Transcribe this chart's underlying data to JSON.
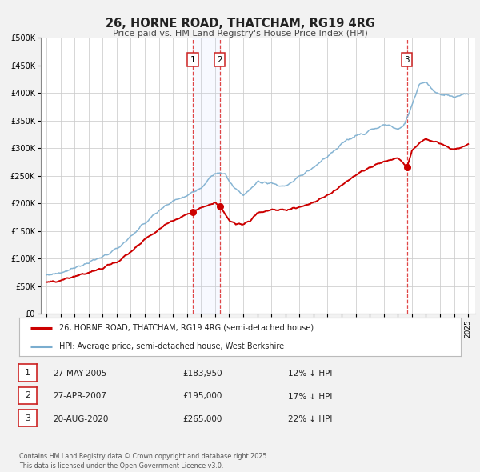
{
  "title": "26, HORNE ROAD, THATCHAM, RG19 4RG",
  "subtitle": "Price paid vs. HM Land Registry's House Price Index (HPI)",
  "background_color": "#f2f2f2",
  "plot_bg_color": "#ffffff",
  "red_label": "26, HORNE ROAD, THATCHAM, RG19 4RG (semi-detached house)",
  "blue_label": "HPI: Average price, semi-detached house, West Berkshire",
  "footer": "Contains HM Land Registry data © Crown copyright and database right 2025.\nThis data is licensed under the Open Government Licence v3.0.",
  "transactions": [
    {
      "num": 1,
      "date": "27-MAY-2005",
      "price": 183950,
      "pct": "12%",
      "year": 2005.41
    },
    {
      "num": 2,
      "date": "27-APR-2007",
      "price": 195000,
      "pct": "17%",
      "year": 2007.32
    },
    {
      "num": 3,
      "date": "20-AUG-2020",
      "price": 265000,
      "pct": "22%",
      "year": 2020.64
    }
  ],
  "red_color": "#cc0000",
  "blue_color": "#7aadcf",
  "vline_color": "#dd3333",
  "ylim": [
    0,
    500000
  ],
  "yticks": [
    0,
    50000,
    100000,
    150000,
    200000,
    250000,
    300000,
    350000,
    400000,
    450000,
    500000
  ],
  "xlim_start": 1994.6,
  "xlim_end": 2025.5,
  "xticks": [
    1995,
    1996,
    1997,
    1998,
    1999,
    2000,
    2001,
    2002,
    2003,
    2004,
    2005,
    2006,
    2007,
    2008,
    2009,
    2010,
    2011,
    2012,
    2013,
    2014,
    2015,
    2016,
    2017,
    2018,
    2019,
    2020,
    2021,
    2022,
    2023,
    2024,
    2025
  ],
  "hpi_anchors_x": [
    1995,
    1996,
    1997,
    1998,
    1999,
    2000,
    2001,
    2002,
    2003,
    2004,
    2005,
    2006,
    2007,
    2007.7,
    2008,
    2009,
    2009.5,
    2010,
    2011,
    2011.5,
    2012,
    2013,
    2014,
    2015,
    2016,
    2017,
    2018,
    2019,
    2019.5,
    2020,
    2020.5,
    2021,
    2021.5,
    2022,
    2022.5,
    2023,
    2024,
    2025
  ],
  "hpi_anchors_y": [
    70000,
    75000,
    84000,
    92000,
    103000,
    118000,
    140000,
    165000,
    185000,
    205000,
    215000,
    228000,
    256000,
    256000,
    238000,
    216000,
    225000,
    238000,
    238000,
    232000,
    232000,
    248000,
    265000,
    285000,
    308000,
    322000,
    332000,
    342000,
    340000,
    332000,
    345000,
    378000,
    415000,
    420000,
    405000,
    398000,
    393000,
    398000
  ],
  "red_anchors_x": [
    1995,
    1996,
    1997,
    1998,
    1999,
    2000,
    2001,
    2002,
    2003,
    2004,
    2005,
    2005.41,
    2006,
    2007,
    2007.32,
    2007.8,
    2008,
    2008.5,
    2009,
    2009.5,
    2010,
    2010.5,
    2011,
    2012,
    2013,
    2014,
    2015,
    2016,
    2017,
    2018,
    2019,
    2020,
    2020.64,
    2021,
    2021.5,
    2022,
    2022.5,
    2023,
    2023.5,
    2024,
    2025
  ],
  "red_anchors_y": [
    57000,
    60000,
    68000,
    75000,
    83000,
    94000,
    112000,
    135000,
    153000,
    168000,
    180000,
    183950,
    192000,
    202000,
    195000,
    178000,
    170000,
    163000,
    163000,
    170000,
    182000,
    185000,
    188000,
    188000,
    193000,
    202000,
    215000,
    232000,
    252000,
    265000,
    275000,
    282000,
    265000,
    295000,
    308000,
    318000,
    312000,
    308000,
    302000,
    298000,
    305000
  ],
  "noise_seed": 77
}
